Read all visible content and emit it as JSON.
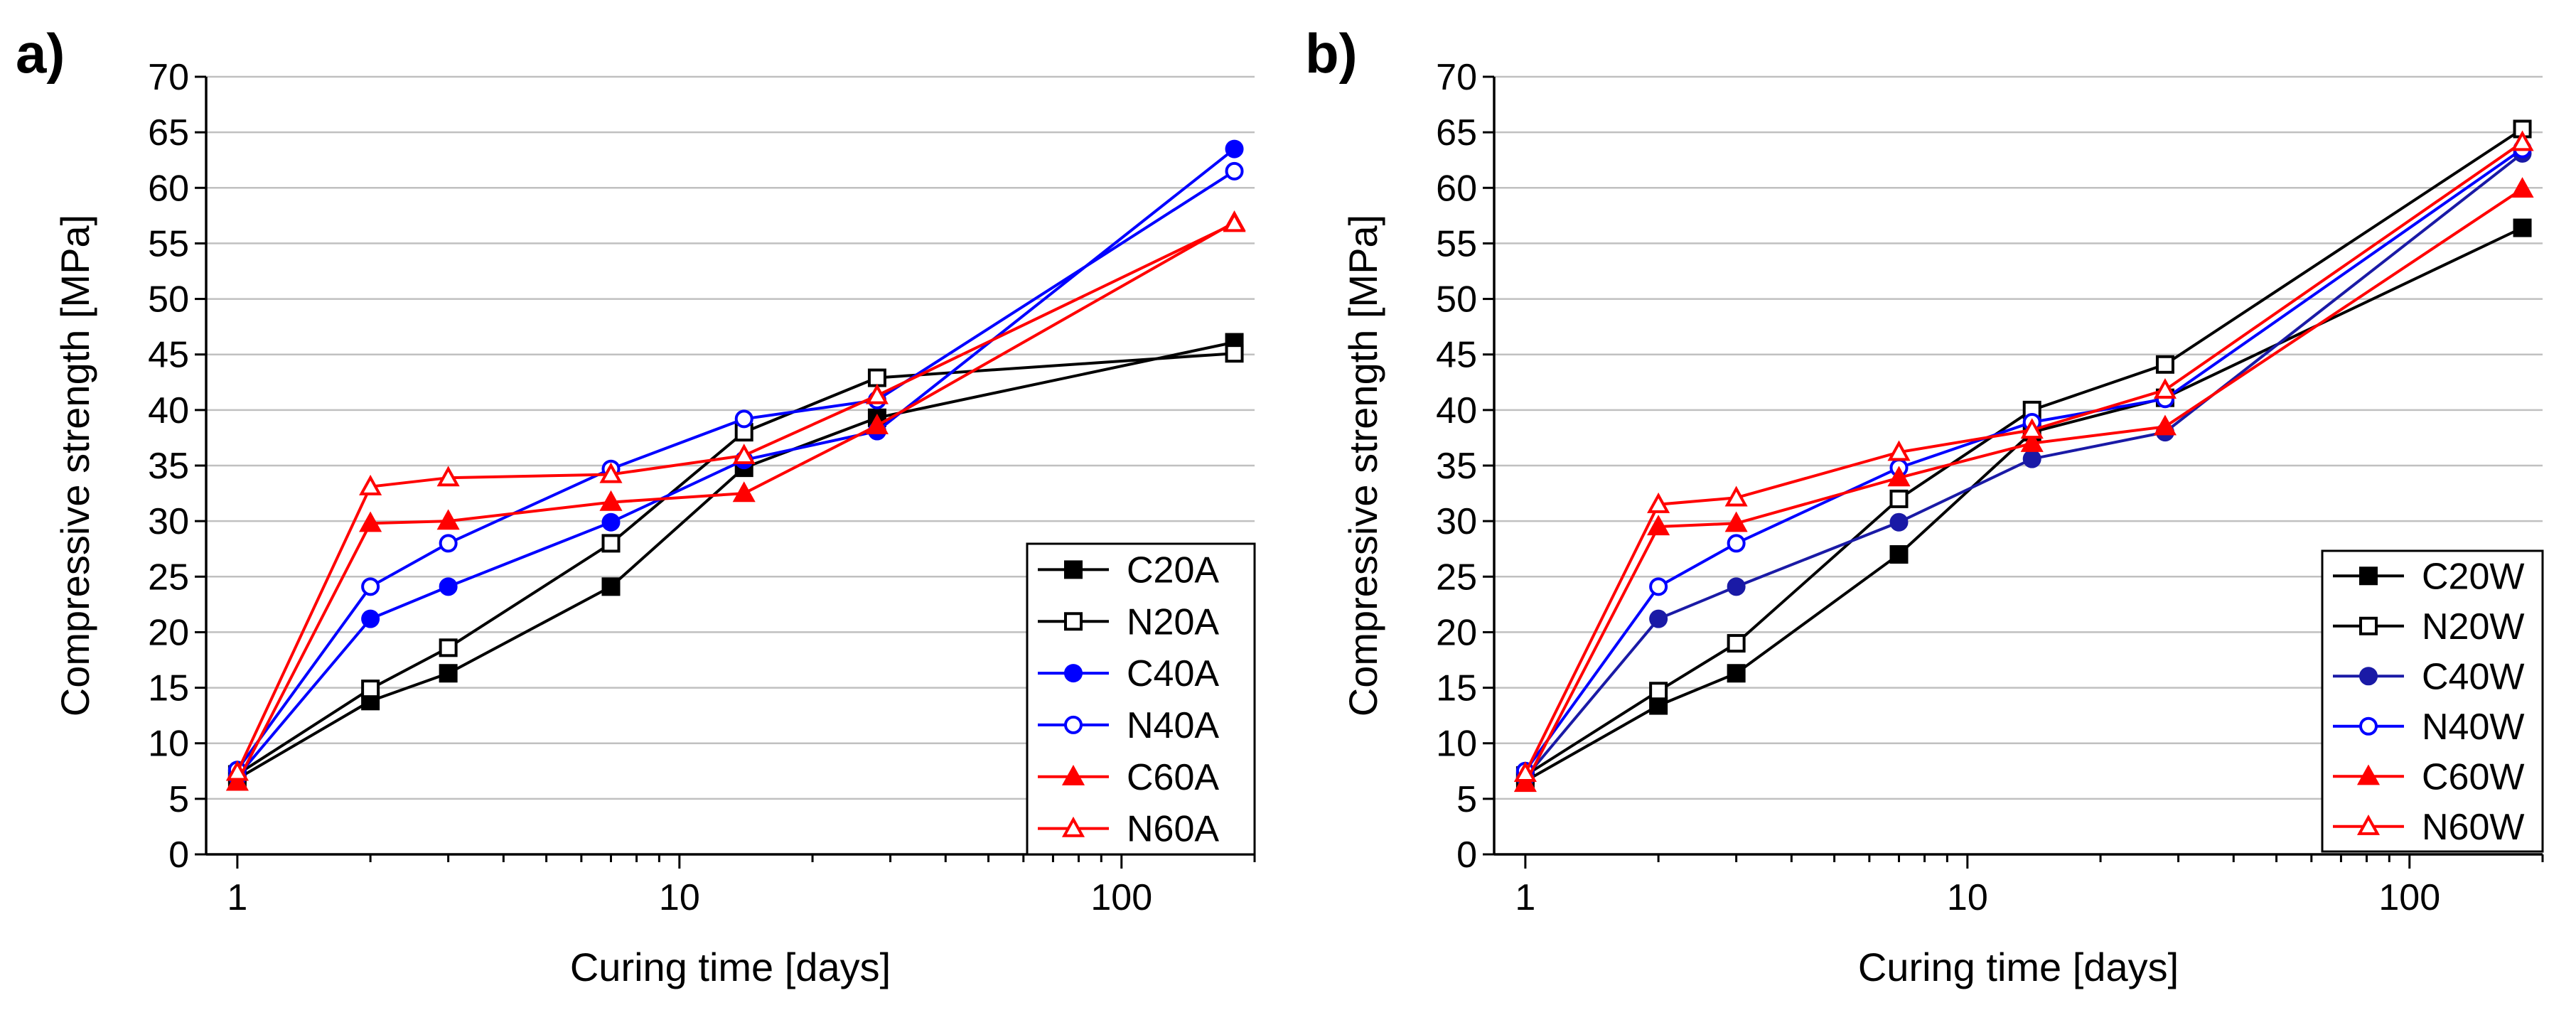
{
  "chart_data": [
    {
      "panel_label": "a)",
      "type": "line",
      "xscale": "log",
      "xlabel": "Curing time [days]",
      "ylabel": "Compressive strength [MPa]",
      "xlim": [
        0.85,
        200
      ],
      "ylim": [
        0,
        70
      ],
      "xticks": [
        1,
        10,
        100
      ],
      "yticks": [
        0,
        5,
        10,
        15,
        20,
        25,
        30,
        35,
        40,
        45,
        50,
        55,
        60,
        65,
        70
      ],
      "grid": "horizontal",
      "legend_position": "bottom-right",
      "x": [
        1,
        2,
        3,
        7,
        14,
        28,
        180
      ],
      "series": [
        {
          "name": "C20A",
          "color": "#000000",
          "marker": "square",
          "filled": true,
          "values": [
            6.8,
            13.8,
            16.3,
            24.1,
            34.8,
            39.3,
            46.1
          ]
        },
        {
          "name": "N20A",
          "color": "#000000",
          "marker": "square",
          "filled": false,
          "values": [
            7.2,
            14.9,
            18.6,
            28.0,
            38.0,
            42.9,
            45.1
          ]
        },
        {
          "name": "C40A",
          "color": "#0000ff",
          "marker": "circle",
          "filled": true,
          "values": [
            7.0,
            21.2,
            24.1,
            29.9,
            35.5,
            38.1,
            63.5
          ]
        },
        {
          "name": "N40A",
          "color": "#0000ff",
          "marker": "circle",
          "filled": false,
          "values": [
            7.6,
            24.1,
            28.0,
            34.7,
            39.2,
            40.9,
            61.5
          ]
        },
        {
          "name": "C60A",
          "color": "#ff0000",
          "marker": "triangle",
          "filled": true,
          "values": [
            6.5,
            29.8,
            30.0,
            31.7,
            32.5,
            38.6,
            56.9
          ]
        },
        {
          "name": "N60A",
          "color": "#ff0000",
          "marker": "triangle",
          "filled": false,
          "values": [
            7.4,
            33.1,
            33.9,
            34.2,
            35.9,
            41.3,
            56.8
          ]
        }
      ]
    },
    {
      "panel_label": "b)",
      "type": "line",
      "xscale": "log",
      "xlabel": "Curing time [days]",
      "ylabel": "Compressive strength [MPa]",
      "xlim": [
        0.85,
        200
      ],
      "ylim": [
        0,
        70
      ],
      "xticks": [
        1,
        10,
        100
      ],
      "yticks": [
        0,
        5,
        10,
        15,
        20,
        25,
        30,
        35,
        40,
        45,
        50,
        55,
        60,
        65,
        70
      ],
      "grid": "horizontal",
      "legend_position": "bottom-right",
      "x": [
        1,
        2,
        3,
        7,
        14,
        28,
        180
      ],
      "series": [
        {
          "name": "C20W",
          "color": "#000000",
          "marker": "square",
          "filled": true,
          "values": [
            6.6,
            13.4,
            16.3,
            27.0,
            38.0,
            41.1,
            56.4
          ]
        },
        {
          "name": "N20W",
          "color": "#000000",
          "marker": "square",
          "filled": false,
          "values": [
            7.1,
            14.7,
            19.0,
            32.0,
            40.0,
            44.1,
            65.3
          ]
        },
        {
          "name": "C40W",
          "color": "#1a1aa6",
          "marker": "circle",
          "filled": true,
          "values": [
            6.9,
            21.2,
            24.1,
            29.9,
            35.6,
            38.0,
            63.1
          ]
        },
        {
          "name": "N40W",
          "color": "#0000ff",
          "marker": "circle",
          "filled": false,
          "values": [
            7.5,
            24.1,
            28.0,
            34.8,
            38.9,
            41.0,
            63.5
          ]
        },
        {
          "name": "C60W",
          "color": "#ff0000",
          "marker": "triangle",
          "filled": true,
          "values": [
            6.4,
            29.5,
            29.8,
            33.9,
            37.0,
            38.5,
            59.9
          ]
        },
        {
          "name": "N60W",
          "color": "#ff0000",
          "marker": "triangle",
          "filled": false,
          "values": [
            7.3,
            31.5,
            32.1,
            36.2,
            38.2,
            41.8,
            64.1
          ]
        }
      ]
    }
  ]
}
